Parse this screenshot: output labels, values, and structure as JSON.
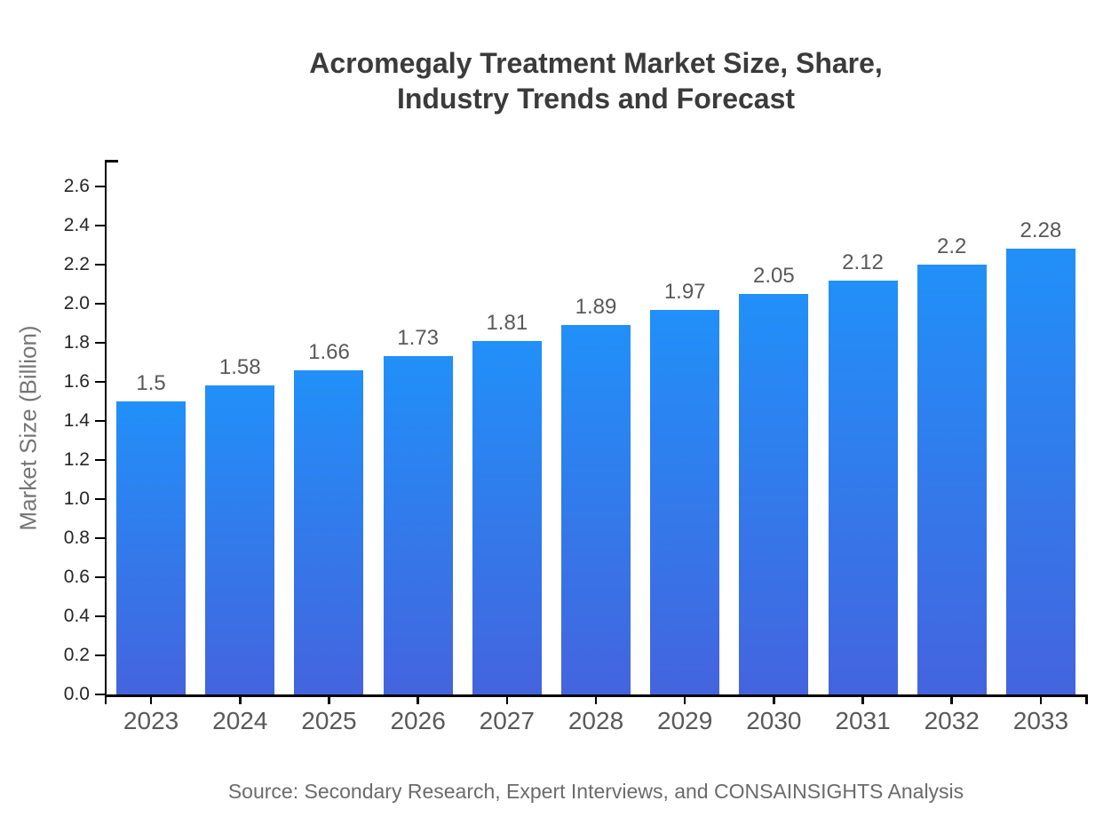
{
  "title": {
    "line1": "Acromegaly Treatment Market Size, Share,",
    "line2": "Industry Trends and Forecast"
  },
  "source": "Source: Secondary Research, Expert Interviews, and CONSAINSIGHTS Analysis",
  "chart_data": {
    "type": "bar",
    "title": "Acromegaly Treatment Market Size, Share, Industry Trends and Forecast",
    "categories": [
      "2023",
      "2024",
      "2025",
      "2026",
      "2027",
      "2028",
      "2029",
      "2030",
      "2031",
      "2032",
      "2033"
    ],
    "values": [
      1.5,
      1.58,
      1.66,
      1.73,
      1.81,
      1.89,
      1.97,
      2.05,
      2.12,
      2.2,
      2.28
    ],
    "value_labels": [
      "1.5",
      "1.58",
      "1.66",
      "1.73",
      "1.81",
      "1.89",
      "1.97",
      "2.05",
      "2.12",
      "2.2",
      "2.28"
    ],
    "xlabel": "",
    "ylabel": "Market Size (Billion)",
    "ylim": [
      0,
      2.73
    ],
    "yticks": [
      0.0,
      0.2,
      0.4,
      0.6,
      0.8,
      1.0,
      1.2,
      1.4,
      1.6,
      1.8,
      2.0,
      2.2,
      2.4,
      2.6
    ],
    "ytick_labels": [
      "0.0",
      "0.2",
      "0.4",
      "0.6",
      "0.8",
      "1.0",
      "1.2",
      "1.4",
      "1.6",
      "1.8",
      "2.0",
      "2.2",
      "2.4",
      "2.6"
    ],
    "grid": false,
    "legend": null,
    "colors": {
      "bar_gradient_top": "#2190F8",
      "bar_gradient_bottom": "#4464DE",
      "axis": "#000000",
      "ytick_text": "#262626",
      "xtick_text": "#595959",
      "value_text": "#595959",
      "axis_label_text": "#757575",
      "title_text": "#3b3b3b",
      "source_text": "#6b6b6b",
      "background": "#ffffff"
    }
  }
}
